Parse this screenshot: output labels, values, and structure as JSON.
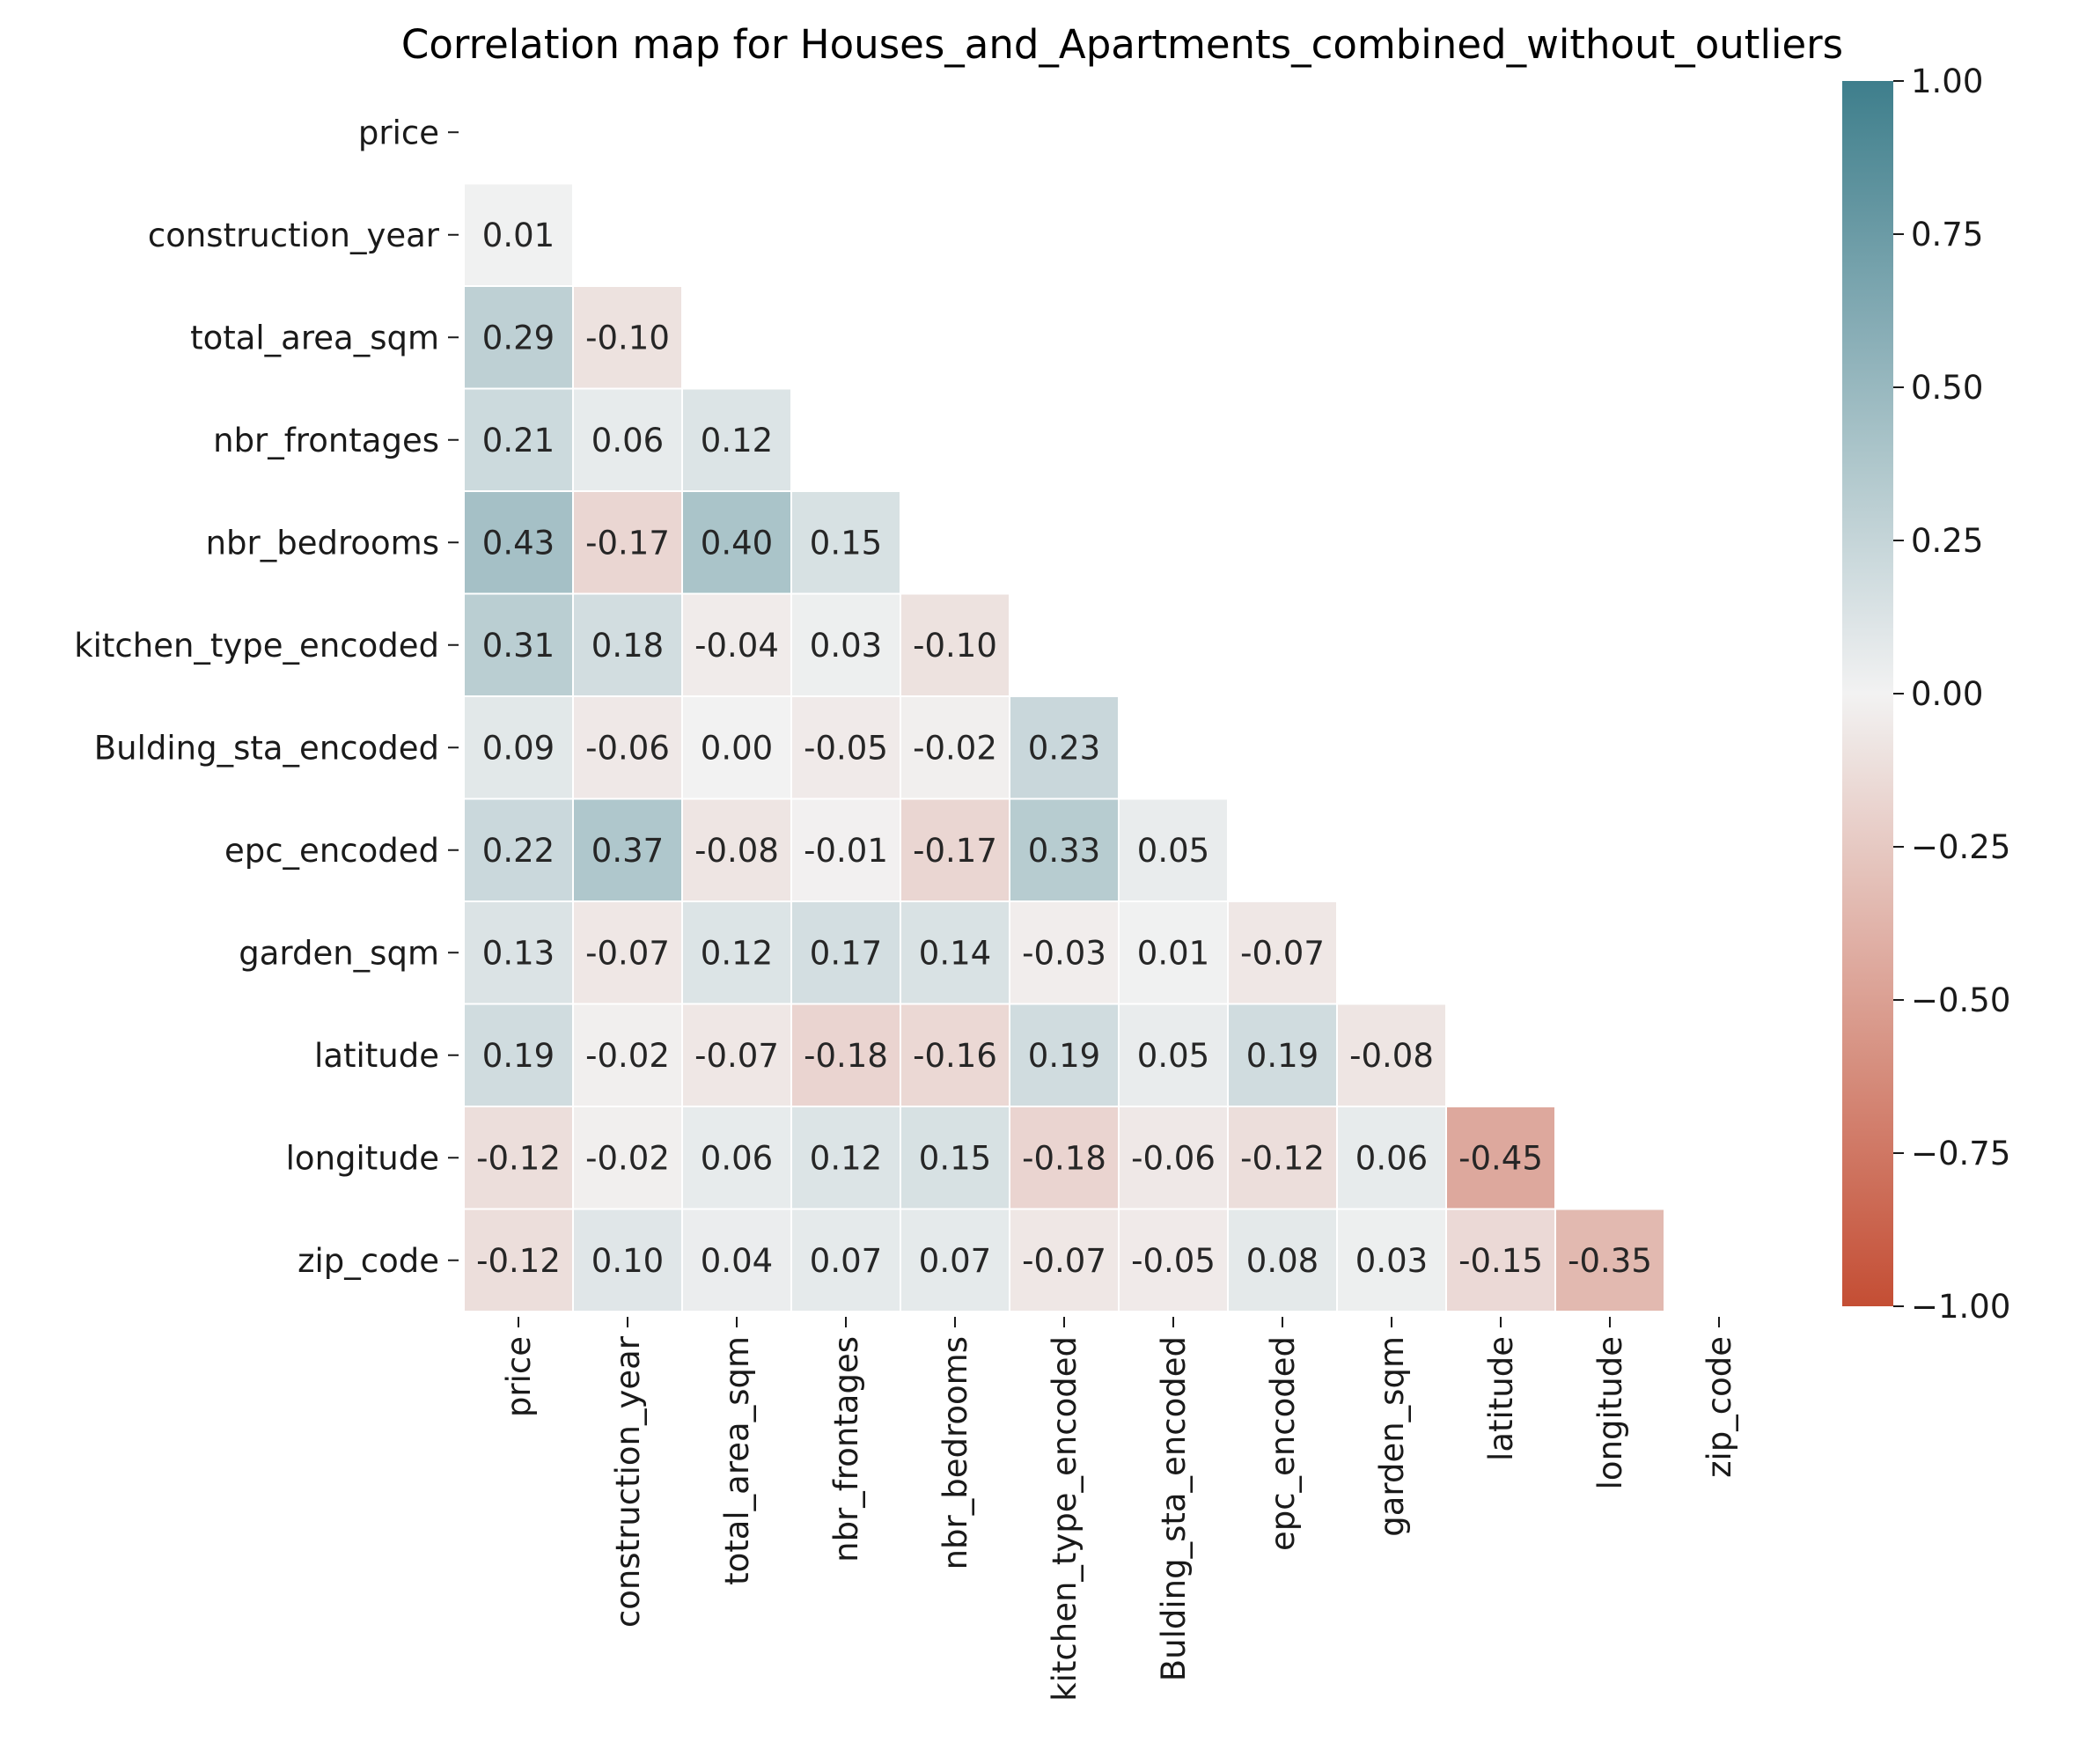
{
  "chart_data": {
    "type": "heatmap",
    "title": "Correlation map for Houses_and_Apartments_combined_without_outliers",
    "variables": [
      "price",
      "construction_year",
      "total_area_sqm",
      "nbr_frontages",
      "nbr_bedrooms",
      "kitchen_type_encoded",
      "Bulding_sta_encoded",
      "epc_encoded",
      "garden_sqm",
      "latitude",
      "longitude",
      "zip_code"
    ],
    "mask": "upper-triangle-including-diagonal",
    "matrix": [
      [
        null
      ],
      [
        0.01
      ],
      [
        0.29,
        -0.1
      ],
      [
        0.21,
        0.06,
        0.12
      ],
      [
        0.43,
        -0.17,
        0.4,
        0.15
      ],
      [
        0.31,
        0.18,
        -0.04,
        0.03,
        -0.1
      ],
      [
        0.09,
        -0.06,
        0.0,
        -0.05,
        -0.02,
        0.23
      ],
      [
        0.22,
        0.37,
        -0.08,
        -0.01,
        -0.17,
        0.33,
        0.05
      ],
      [
        0.13,
        -0.07,
        0.12,
        0.17,
        0.14,
        -0.03,
        0.01,
        -0.07
      ],
      [
        0.19,
        -0.02,
        -0.07,
        -0.18,
        -0.16,
        0.19,
        0.05,
        0.19,
        -0.08
      ],
      [
        -0.12,
        -0.02,
        0.06,
        0.12,
        0.15,
        -0.18,
        -0.06,
        -0.12,
        0.06,
        -0.45
      ],
      [
        -0.12,
        0.1,
        0.04,
        0.07,
        0.07,
        -0.07,
        -0.05,
        0.08,
        0.03,
        -0.15,
        -0.35
      ]
    ],
    "colorbar": {
      "range": [
        -1,
        1
      ],
      "ticks": [
        "1.00",
        "0.75",
        "0.50",
        "0.25",
        "0.00",
        "−0.25",
        "−0.50",
        "−0.75",
        "−1.00"
      ],
      "tick_values": [
        1,
        0.75,
        0.5,
        0.25,
        0,
        -0.25,
        -0.5,
        -0.75,
        -1
      ],
      "colors": {
        "negative": "#c44e34",
        "neutral": "#f2f2f2",
        "positive": "#3e7e8c"
      }
    },
    "value_format": "2 decimals"
  }
}
